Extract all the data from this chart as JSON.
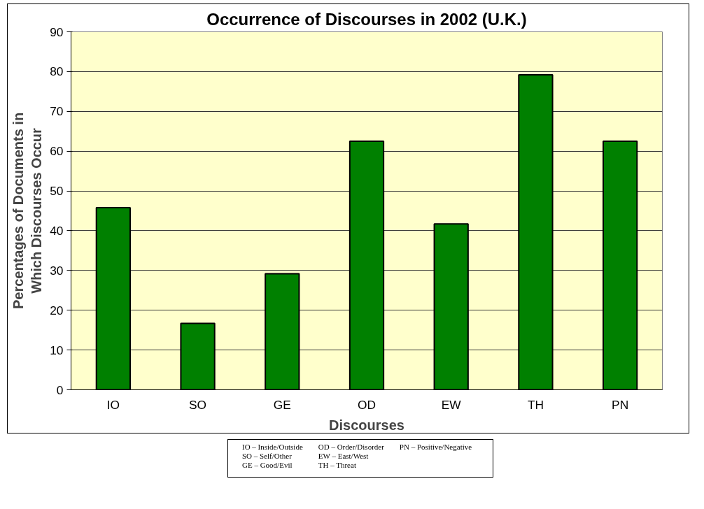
{
  "chart_data": {
    "type": "bar",
    "title": "Occurrence of Discourses in 2002 (U.K.)",
    "xlabel": "Discourses",
    "ylabel": "Percentages of Documents in\nWhich Discourses Occur",
    "categories": [
      "IO",
      "SO",
      "GE",
      "OD",
      "EW",
      "TH",
      "PN"
    ],
    "values": [
      45.8,
      16.7,
      29.2,
      62.5,
      41.7,
      79.2,
      62.5
    ],
    "color": "#008000",
    "ylim": [
      0,
      90
    ],
    "yticks": [
      0,
      10,
      20,
      30,
      40,
      50,
      60,
      70,
      80,
      90
    ],
    "grid": "y",
    "annotations": [
      "IO – Inside/Outside",
      "SO – Self/Other",
      "GE – Good/Evil",
      "OD – Order/Disorder",
      "EW – East/West",
      "TH – Threat",
      "PN – Positive/Negative"
    ]
  }
}
